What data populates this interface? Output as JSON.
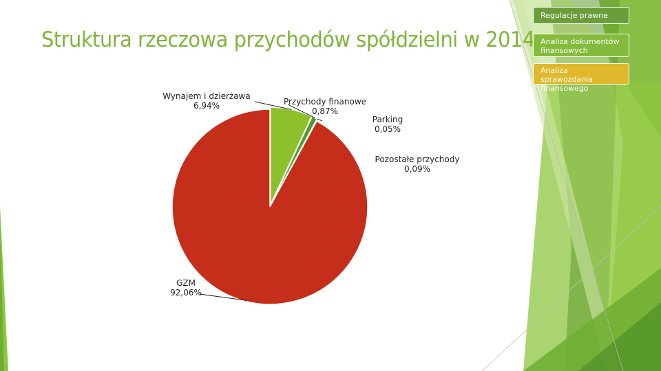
{
  "title": "Struktura rzeczowa przychodów spółdzielni w 2014 r.",
  "nav": {
    "items": [
      "Regulacje prawne",
      "Analiza dokumentów finansowych",
      "Analiza sprawozdania finansowego"
    ]
  },
  "colors": {
    "title": "#7fb539",
    "gzm": "#c52e1a",
    "wynajem": "#8dc12c",
    "finanse": "#4f9a2e",
    "parking": "#c0392b",
    "pozostale": "#a3d14a"
  },
  "chart_data": {
    "type": "pie",
    "slices": [
      {
        "name": "Wynajem i dzierżawa",
        "value": 6.94,
        "label": "6,94%",
        "color": "#8dc12c"
      },
      {
        "name": "Przychody finanowe",
        "value": 0.87,
        "label": "0,87%",
        "color": "#4f9a2e"
      },
      {
        "name": "Parking",
        "value": 0.05,
        "label": "0,05%",
        "color": "#c0392b"
      },
      {
        "name": "Pozostałe przychody",
        "value": 0.09,
        "label": "0,09%",
        "color": "#a3d14a"
      },
      {
        "name": "GZM",
        "value": 92.06,
        "label": "92,06%",
        "color": "#c52e1a"
      }
    ],
    "start_angle_deg": 0,
    "direction": "clockwise",
    "legend": "none"
  }
}
